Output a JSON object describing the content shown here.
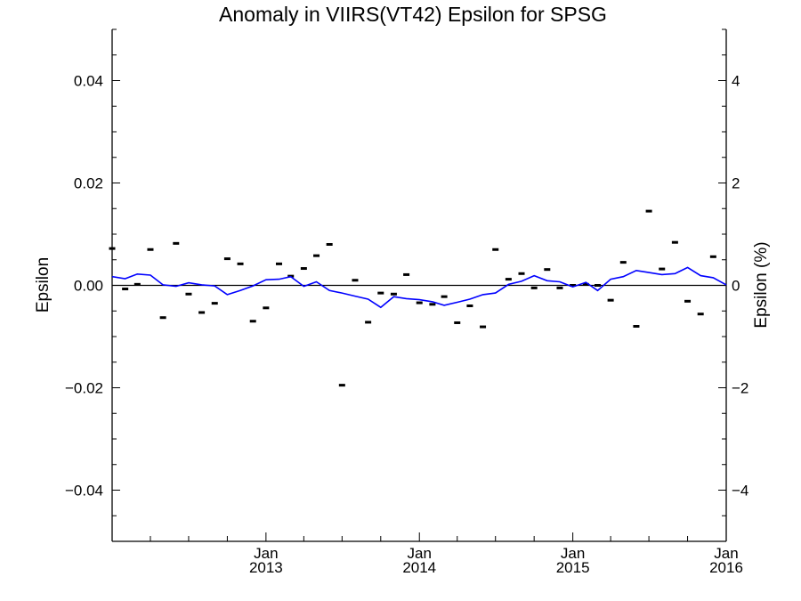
{
  "chart_data": {
    "type": "scatter",
    "title": "Anomaly in VIIRS(VT42) Epsilon for SPSG",
    "ylabel": "Epsilon",
    "y2label": "Epsilon (%)",
    "xlim": [
      "2012-01-01",
      "2016-01-01"
    ],
    "ylim": [
      -0.05,
      0.05
    ],
    "y2lim": [
      -5,
      5
    ],
    "x_ticks": [
      {
        "date": "2013-01-01",
        "month": "Jan",
        "year": "2013"
      },
      {
        "date": "2014-01-01",
        "month": "Jan",
        "year": "2014"
      },
      {
        "date": "2015-01-01",
        "month": "Jan",
        "year": "2015"
      },
      {
        "date": "2016-01-01",
        "month": "Jan",
        "year": "2016"
      }
    ],
    "y_ticks": [
      "0.04",
      "0.02",
      "0.00",
      "−0.02",
      "−0.04"
    ],
    "y_tick_values": [
      0.04,
      0.02,
      0.0,
      -0.02,
      -0.04
    ],
    "y2_ticks": [
      "4",
      "2",
      "0",
      "−2",
      "−4"
    ],
    "y2_tick_values": [
      4,
      2,
      0,
      -2,
      -4
    ],
    "zero_line": 0,
    "colors": {
      "points": "#000000",
      "line": "#0000ff",
      "axes": "#000000"
    },
    "series": [
      {
        "style": "points",
        "x": [
          "2012-01-01",
          "2012-02-01",
          "2012-03-01",
          "2012-04-01",
          "2012-05-01",
          "2012-06-01",
          "2012-07-01",
          "2012-08-01",
          "2012-09-01",
          "2012-10-01",
          "2012-11-01",
          "2012-12-01",
          "2013-01-01",
          "2013-02-01",
          "2013-03-01",
          "2013-04-01",
          "2013-05-01",
          "2013-06-01",
          "2013-07-01",
          "2013-08-01",
          "2013-09-01",
          "2013-10-01",
          "2013-11-01",
          "2013-12-01",
          "2014-01-01",
          "2014-02-01",
          "2014-03-01",
          "2014-04-01",
          "2014-05-01",
          "2014-06-01",
          "2014-07-01",
          "2014-08-01",
          "2014-09-01",
          "2014-10-01",
          "2014-11-01",
          "2014-12-01",
          "2015-01-01",
          "2015-02-01",
          "2015-03-01",
          "2015-04-01",
          "2015-05-01",
          "2015-06-01",
          "2015-07-01",
          "2015-08-01",
          "2015-09-01",
          "2015-10-01",
          "2015-11-01",
          "2015-12-01"
        ],
        "values": [
          0.0072,
          -0.0007,
          0.0002,
          0.007,
          -0.0063,
          0.0082,
          -0.0017,
          -0.0053,
          -0.0035,
          0.0052,
          0.0042,
          -0.007,
          -0.0044,
          0.0042,
          0.0018,
          0.0033,
          0.0058,
          0.008,
          -0.0195,
          0.001,
          -0.0072,
          -0.0015,
          -0.0017,
          0.0021,
          -0.0034,
          -0.0037,
          -0.0022,
          -0.0073,
          -0.004,
          -0.0081,
          0.007,
          0.0012,
          0.0023,
          -0.0005,
          0.0031,
          -0.0005,
          0.0,
          0.0002,
          0.0,
          -0.0029,
          0.0045,
          -0.008,
          0.0145,
          0.0032,
          0.0084,
          -0.0031,
          -0.0056,
          0.0056
        ]
      },
      {
        "style": "line",
        "x": [
          "2012-01-01",
          "2012-02-01",
          "2012-03-01",
          "2012-04-01",
          "2012-05-01",
          "2012-06-01",
          "2012-07-01",
          "2012-08-01",
          "2012-09-01",
          "2012-10-01",
          "2012-11-01",
          "2012-12-01",
          "2013-01-01",
          "2013-02-01",
          "2013-03-01",
          "2013-04-01",
          "2013-05-01",
          "2013-06-01",
          "2013-07-01",
          "2013-08-01",
          "2013-09-01",
          "2013-10-01",
          "2013-11-01",
          "2013-12-01",
          "2014-01-01",
          "2014-02-01",
          "2014-03-01",
          "2014-04-01",
          "2014-05-01",
          "2014-06-01",
          "2014-07-01",
          "2014-08-01",
          "2014-09-01",
          "2014-10-01",
          "2014-11-01",
          "2014-12-01",
          "2015-01-01",
          "2015-02-01",
          "2015-03-01",
          "2015-04-01",
          "2015-05-01",
          "2015-06-01",
          "2015-07-01",
          "2015-08-01",
          "2015-09-01",
          "2015-10-01",
          "2015-11-01",
          "2015-12-01",
          "2016-01-01"
        ],
        "values": [
          0.0017,
          0.0013,
          0.0022,
          0.002,
          0.0001,
          -0.0002,
          0.0005,
          0.0001,
          -0.0001,
          -0.0018,
          -0.001,
          -0.0001,
          0.0011,
          0.0012,
          0.0017,
          -0.0002,
          0.0007,
          -0.001,
          -0.0015,
          -0.0021,
          -0.0027,
          -0.0043,
          -0.0022,
          -0.0026,
          -0.0028,
          -0.0032,
          -0.0039,
          -0.0033,
          -0.0027,
          -0.0018,
          -0.0015,
          0.0002,
          0.0008,
          0.0019,
          0.0009,
          0.0007,
          -0.0003,
          0.0006,
          -0.001,
          0.0012,
          0.0017,
          0.0029,
          0.0025,
          0.0021,
          0.0023,
          0.0035,
          0.0019,
          0.0015,
          0.0001
        ]
      }
    ]
  }
}
